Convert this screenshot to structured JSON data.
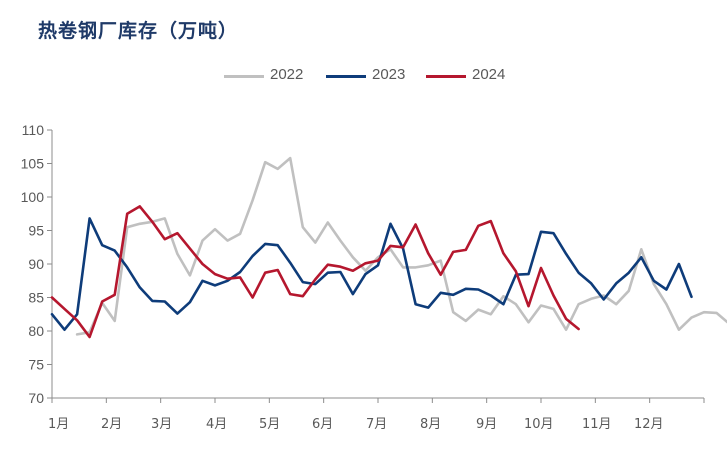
{
  "title": "热卷钢厂库存（万吨）",
  "chart_data": {
    "type": "line",
    "title": "热卷钢厂库存（万吨）",
    "xlabel": "",
    "ylabel": "",
    "ylim": [
      70,
      110
    ],
    "yticks": [
      70,
      75,
      80,
      85,
      90,
      95,
      100,
      105,
      110
    ],
    "xticks": [
      "1月",
      "2月",
      "3月",
      "4月",
      "5月",
      "6月",
      "7月",
      "8月",
      "9月",
      "10月",
      "11月",
      "12月"
    ],
    "grid": false,
    "legend_position": "top",
    "series": [
      {
        "name": "2022",
        "color": "#c0c0c0",
        "week_start": 3,
        "values": [
          79.5,
          79.8,
          84.2,
          81.5,
          95.5,
          96.0,
          96.3,
          96.8,
          91.5,
          88.3,
          93.5,
          95.2,
          93.5,
          94.5,
          99.5,
          105.2,
          104.2,
          105.8,
          95.5,
          93.2,
          96.2,
          93.5,
          91.0,
          89.0,
          91.0,
          92.2,
          89.5,
          89.5,
          89.8,
          90.5,
          82.8,
          81.5,
          83.2,
          82.5,
          85.2,
          84.0,
          81.3,
          83.8,
          83.3,
          80.2,
          84.0,
          84.8,
          85.3,
          84.0,
          86.0,
          92.2,
          87.0,
          84.0,
          80.2,
          82.0,
          82.8,
          82.7,
          81.1
        ]
      },
      {
        "name": "2023",
        "color": "#0e3c7a",
        "week_start": 1,
        "values": [
          82.5,
          80.2,
          82.5,
          96.8,
          92.8,
          92.0,
          89.5,
          86.5,
          84.5,
          84.4,
          82.6,
          84.3,
          87.5,
          86.8,
          87.5,
          88.8,
          91.2,
          93.0,
          92.8,
          90.2,
          87.3,
          87.0,
          88.7,
          88.8,
          85.5,
          88.5,
          89.8,
          96.0,
          92.3,
          84.0,
          83.5,
          85.7,
          85.4,
          86.3,
          86.2,
          85.3,
          84.0,
          88.4,
          88.5,
          94.8,
          94.6,
          91.5,
          88.7,
          87.1,
          84.7,
          87.1,
          88.7,
          91.0,
          87.5,
          86.2,
          90.0,
          85.1
        ]
      },
      {
        "name": "2024",
        "color": "#b5172e",
        "week_start": 1,
        "values": [
          85.0,
          83.3,
          81.6,
          79.1,
          84.4,
          85.4,
          97.5,
          98.6,
          96.3,
          93.7,
          94.6,
          92.3,
          90.0,
          88.5,
          87.8,
          88.0,
          85.0,
          88.7,
          89.1,
          85.5,
          85.2,
          87.7,
          89.9,
          89.6,
          89.0,
          90.1,
          90.5,
          92.7,
          92.5,
          95.9,
          91.6,
          88.4,
          91.8,
          92.1,
          95.7,
          96.4,
          91.6,
          88.9,
          83.7,
          89.4,
          85.3,
          81.8,
          80.3
        ]
      }
    ]
  }
}
